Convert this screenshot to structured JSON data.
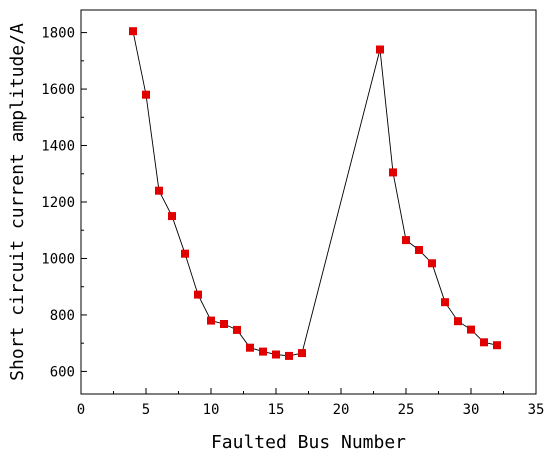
{
  "chart_data": {
    "type": "line",
    "xlabel": "Faulted Bus Number",
    "ylabel": "Short circuit current amplitude/A",
    "xlim": [
      0,
      35
    ],
    "ylim": [
      520,
      1880
    ],
    "xticks": [
      0,
      5,
      10,
      15,
      20,
      25,
      30,
      35
    ],
    "yticks": [
      600,
      800,
      1000,
      1200,
      1400,
      1600,
      1800
    ],
    "grid": false,
    "marker": "square",
    "colors": {
      "line": "#000000",
      "marker": "#e00000"
    },
    "series": [
      {
        "x": [
          4,
          5,
          6,
          7,
          8,
          9,
          10,
          11,
          12,
          13,
          14,
          15,
          16,
          17,
          23,
          24,
          25,
          26,
          27,
          28,
          29,
          30,
          31,
          32
        ],
        "values": [
          1805,
          1580,
          1240,
          1150,
          1017,
          872,
          780,
          768,
          747,
          684,
          670,
          660,
          655,
          665,
          1740,
          1305,
          1065,
          1030,
          983,
          845,
          778,
          748,
          703,
          693
        ]
      }
    ]
  }
}
